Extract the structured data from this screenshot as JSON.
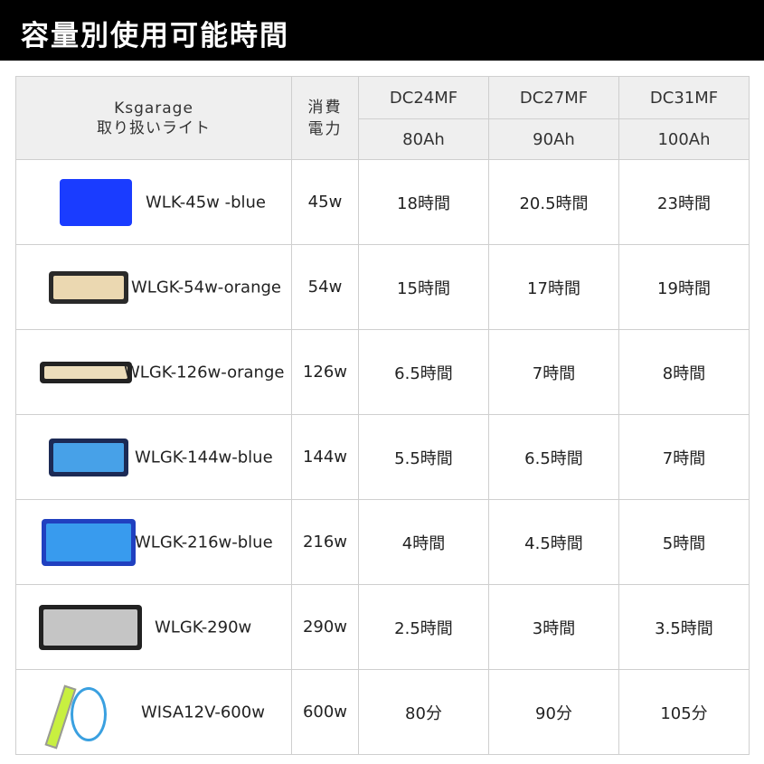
{
  "title": "容量別使用可能時間",
  "header": {
    "light_line1": "Ksgarage",
    "light_line2": "取り扱いライト",
    "power_line1": "消費",
    "power_line2": "電力",
    "batteries": [
      {
        "name": "DC24MF",
        "capacity": "80Ah"
      },
      {
        "name": "DC27MF",
        "capacity": "90Ah"
      },
      {
        "name": "DC31MF",
        "capacity": "100Ah"
      }
    ]
  },
  "rows": [
    {
      "name": "WLK-45w -blue",
      "power": "45w",
      "times": [
        "18時間",
        "20.5時間",
        "23時間"
      ],
      "color": "#1a3cff"
    },
    {
      "name": "WLGK-54w-orange",
      "power": "54w",
      "times": [
        "15時間",
        "17時間",
        "19時間"
      ],
      "color": "#f5e2b8"
    },
    {
      "name": "WLGK-126w-orange",
      "power": "126w",
      "times": [
        "6.5時間",
        "7時間",
        "8時間"
      ],
      "color": "#f8e8c4"
    },
    {
      "name": "WLGK-144w-blue",
      "power": "144w",
      "times": [
        "5.5時間",
        "6.5時間",
        "7時間"
      ],
      "color": "#4aa8f0"
    },
    {
      "name": "WLGK-216w-blue",
      "power": "216w",
      "times": [
        "4時間",
        "4.5時間",
        "5時間"
      ],
      "color": "#3aa0f0"
    },
    {
      "name": "WLGK-290w",
      "power": "290w",
      "times": [
        "2.5時間",
        "3時間",
        "3.5時間"
      ],
      "color": "#cfcfcf"
    },
    {
      "name": "WISA12V-600w",
      "power": "600w",
      "times": [
        "80分",
        "90分",
        "105分"
      ],
      "color": "#c8f040"
    }
  ]
}
